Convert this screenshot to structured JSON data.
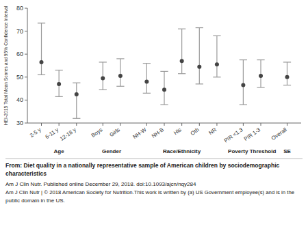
{
  "chart_data": {
    "type": "dot",
    "y_label": "HEI-2015 Total Mean Scores and 95% Confidence Interval",
    "categories": [
      "2-5 y",
      "6-11 y",
      "12-18 y",
      "Boys",
      "Girls",
      "NH-W",
      "NH-B",
      "His",
      "Oth",
      "NR",
      "PIR <1.3",
      "PIR 1-3",
      "Overall"
    ],
    "category_groups": [
      "Age",
      "Age",
      "Age",
      "Gender",
      "Gender",
      "Race/Ethnicity",
      "Race/Ethnicity",
      "Race/Ethnicity",
      "Race/Ethnicity",
      "Race/Ethnicity",
      "Poverty Threshold",
      "Poverty Threshold",
      "SE"
    ],
    "values": [
      56.5,
      47.0,
      42.5,
      49.5,
      50.5,
      48.0,
      44.5,
      57.0,
      54.5,
      55.5,
      46.5,
      50.5,
      50.0
    ],
    "color": "#444444",
    "error_bars": {
      "low": [
        51.0,
        41.5,
        32.0,
        44.5,
        46.0,
        43.0,
        38.0,
        51.5,
        47.0,
        50.0,
        38.0,
        45.5,
        46.5
      ],
      "high": [
        73.5,
        53.0,
        47.5,
        56.5,
        58.0,
        56.0,
        52.5,
        71.0,
        71.5,
        68.0,
        57.5,
        57.5,
        56.5
      ],
      "color": "#999999"
    },
    "ylim": [
      30,
      80
    ],
    "yticks": [
      30,
      40,
      50,
      60,
      70,
      80
    ],
    "annotations": [
      "From: Diet quality in a nationally representative sample of American children by sociodemographic",
      "characteristics",
      "Am J Clin Nutr. Published online  December 29, 2018. doi:10.1093/ajcn/nqy284",
      "Am J Clin Nutr | © 2018 American Society for Nutrition.This work is written by (a) US Government employee(s) and is in the",
      "public domain in the US."
    ]
  }
}
